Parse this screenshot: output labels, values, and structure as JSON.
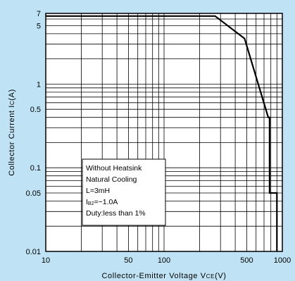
{
  "chart_data": {
    "type": "line",
    "x_scale": "log",
    "y_scale": "log",
    "xlim": [
      10,
      1000
    ],
    "ylim": [
      0.01,
      7
    ],
    "grid": true,
    "x_ticks": [
      {
        "value": 10,
        "label": "10"
      },
      {
        "value": 50,
        "label": "50"
      },
      {
        "value": 100,
        "label": "100"
      },
      {
        "value": 500,
        "label": "500"
      },
      {
        "value": 1000,
        "label": "1000"
      }
    ],
    "y_ticks": [
      {
        "value": 7,
        "label": "7"
      },
      {
        "value": 5,
        "label": "5"
      },
      {
        "value": 1,
        "label": "1"
      },
      {
        "value": 0.5,
        "label": "0.5"
      },
      {
        "value": 0.1,
        "label": "0.1"
      },
      {
        "value": 0.05,
        "label": "0.05"
      },
      {
        "value": 0.01,
        "label": "0.01"
      }
    ],
    "xlabel": {
      "main": "Collector-Emitter Voltage V",
      "sub": "CE",
      "unit": "(V)"
    },
    "ylabel": {
      "main": "Collector Current I",
      "sub": "C",
      "unit": "(A)"
    },
    "series": [
      {
        "x": [
          10,
          270,
          480,
          760,
          780,
          780,
          900,
          900
        ],
        "y": [
          6.5,
          6.5,
          3.5,
          0.4,
          0.4,
          0.05,
          0.05,
          0.01
        ]
      }
    ],
    "annotation": {
      "lines": [
        {
          "main": "Without Heatsink"
        },
        {
          "main": "Natural Cooling"
        },
        {
          "main": "L=3mH"
        },
        {
          "main": "I",
          "sub": "B2",
          "rest": "=−1.0A"
        },
        {
          "main": "Duty:less than 1%"
        }
      ]
    },
    "colors": {
      "background": "#bfe3f5",
      "plot": "#ffffff",
      "line": "#000000"
    }
  }
}
